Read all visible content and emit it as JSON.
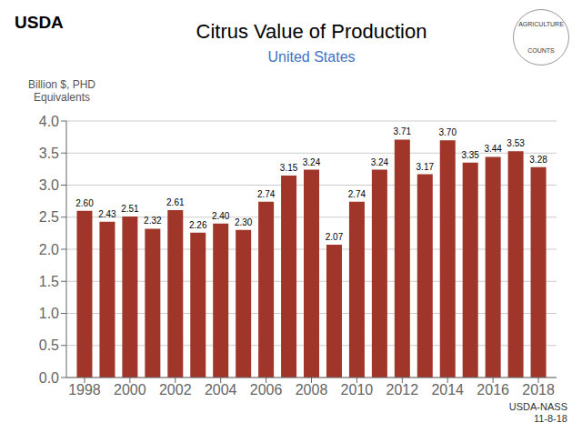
{
  "chart_data": {
    "type": "bar",
    "title": "Citrus Value of Production",
    "subtitle": "United States",
    "ylabel": "Billion $, PHD\n  Equivalents",
    "annotations": [
      "USDA",
      "AGRICULTURE",
      "COUNTS",
      "USDA-NASS\n11-8-18"
    ],
    "x": [
      1998,
      1999,
      2000,
      2001,
      2002,
      2003,
      2004,
      2005,
      2006,
      2007,
      2008,
      2009,
      2010,
      2011,
      2012,
      2013,
      2014,
      2015,
      2016,
      2017,
      2018
    ],
    "values": [
      2.6,
      2.43,
      2.51,
      2.32,
      2.61,
      2.26,
      2.4,
      2.3,
      2.74,
      3.15,
      3.24,
      2.07,
      2.74,
      3.24,
      3.71,
      3.17,
      3.7,
      3.35,
      3.44,
      3.53,
      3.28
    ],
    "value_labels": [
      "2.60",
      "2.43",
      "2.51",
      "2.32",
      "2.61",
      "2.26",
      "2.40",
      "2.30",
      "2.74",
      "3.15",
      "3.24",
      "2.07",
      "2.74",
      "3.24",
      "3.71",
      "3.17",
      "3.70",
      "3.35",
      "3.44",
      "3.53",
      "3.28"
    ],
    "data_labels": true,
    "color": "#A0352A",
    "xlim": [
      1997.2,
      2018.8
    ],
    "xticks": [
      1998,
      2000,
      2002,
      2004,
      2006,
      2008,
      2010,
      2012,
      2014,
      2016,
      2018
    ],
    "ylim": [
      0.0,
      4.0
    ],
    "yticks": [
      {
        "value": 0.0,
        "label": "0.0"
      },
      0.5,
      {
        "value": 1.0,
        "label": "1.0"
      },
      1.5,
      {
        "value": 2.0,
        "label": "2.0"
      },
      2.5,
      {
        "value": 3.0,
        "label": "3.0"
      },
      3.5,
      {
        "value": 4.0,
        "label": "4.0"
      }
    ],
    "grid": true
  }
}
